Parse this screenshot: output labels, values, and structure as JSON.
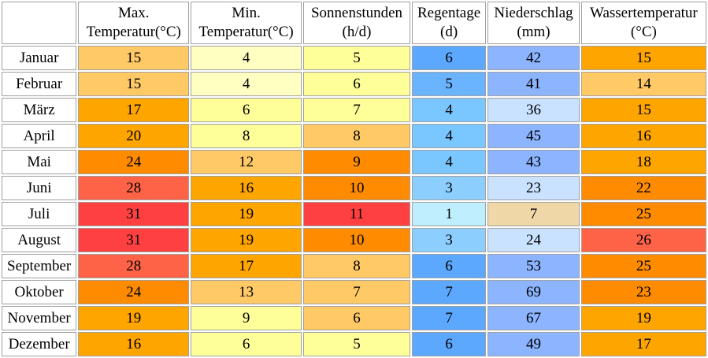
{
  "chart_data": {
    "type": "table",
    "columns": [
      {
        "key": "max_temp",
        "lines": [
          "Max.",
          "Temperatur(°C)"
        ]
      },
      {
        "key": "min_temp",
        "lines": [
          "Min.",
          "Temperatur(°C)"
        ]
      },
      {
        "key": "sun",
        "lines": [
          "Sonnenstunden",
          "(h/d)"
        ]
      },
      {
        "key": "rain_days",
        "lines": [
          "Regentage",
          "(d)"
        ]
      },
      {
        "key": "precip",
        "lines": [
          "Niederschlag",
          "(mm)"
        ]
      },
      {
        "key": "water_temp",
        "lines": [
          "Wassertemperatur",
          "(°C)"
        ]
      }
    ],
    "rows": [
      {
        "month": "Januar",
        "values": [
          15,
          4,
          5,
          6,
          42,
          15
        ]
      },
      {
        "month": "Februar",
        "values": [
          15,
          4,
          6,
          5,
          41,
          14
        ]
      },
      {
        "month": "März",
        "values": [
          17,
          6,
          7,
          4,
          36,
          15
        ]
      },
      {
        "month": "April",
        "values": [
          20,
          8,
          8,
          4,
          45,
          16
        ]
      },
      {
        "month": "Mai",
        "values": [
          24,
          12,
          9,
          4,
          43,
          18
        ]
      },
      {
        "month": "Juni",
        "values": [
          28,
          16,
          10,
          3,
          23,
          22
        ]
      },
      {
        "month": "Juli",
        "values": [
          31,
          19,
          11,
          1,
          7,
          25
        ]
      },
      {
        "month": "August",
        "values": [
          31,
          19,
          10,
          3,
          24,
          26
        ]
      },
      {
        "month": "September",
        "values": [
          28,
          17,
          8,
          6,
          53,
          25
        ]
      },
      {
        "month": "Oktober",
        "values": [
          24,
          13,
          7,
          7,
          69,
          23
        ]
      },
      {
        "month": "November",
        "values": [
          19,
          9,
          6,
          7,
          67,
          19
        ]
      },
      {
        "month": "Dezember",
        "values": [
          16,
          6,
          5,
          6,
          49,
          17
        ]
      }
    ],
    "colors": [
      [
        "#ffc966",
        "#ffffc2",
        "#ffff99",
        "#5ca8ff",
        "#8cb4ff",
        "#ffa500"
      ],
      [
        "#ffc966",
        "#ffffc2",
        "#ffff99",
        "#6ab3ff",
        "#8cb4ff",
        "#ffc966"
      ],
      [
        "#ffa500",
        "#ffff99",
        "#ffff99",
        "#7ac6ff",
        "#c9e2ff",
        "#ffa500"
      ],
      [
        "#ffa500",
        "#ffff99",
        "#ffc966",
        "#7ac6ff",
        "#8cb4ff",
        "#ffa500"
      ],
      [
        "#ff8c00",
        "#ffc966",
        "#ff8c00",
        "#7ac6ff",
        "#8cb4ff",
        "#ffa500"
      ],
      [
        "#ff6347",
        "#ffa500",
        "#ff8c00",
        "#8ccfff",
        "#c9e2ff",
        "#ff8c00"
      ],
      [
        "#ff4040",
        "#ffa500",
        "#ff4040",
        "#bfefff",
        "#f0d7a8",
        "#ff8c00"
      ],
      [
        "#ff4040",
        "#ffa500",
        "#ff8c00",
        "#8ccfff",
        "#c9e2ff",
        "#ff6347"
      ],
      [
        "#ff6347",
        "#ffa500",
        "#ffc966",
        "#5ca8ff",
        "#8cb4ff",
        "#ff8c00"
      ],
      [
        "#ff8c00",
        "#ffc966",
        "#ffc966",
        "#5ca8ff",
        "#8cb4ff",
        "#ff8c00"
      ],
      [
        "#ffa500",
        "#ffff99",
        "#ffc966",
        "#5ca8ff",
        "#8cb4ff",
        "#ffa500"
      ],
      [
        "#ffa500",
        "#ffff99",
        "#ffff99",
        "#5ca8ff",
        "#8cb4ff",
        "#ffa500"
      ]
    ]
  }
}
